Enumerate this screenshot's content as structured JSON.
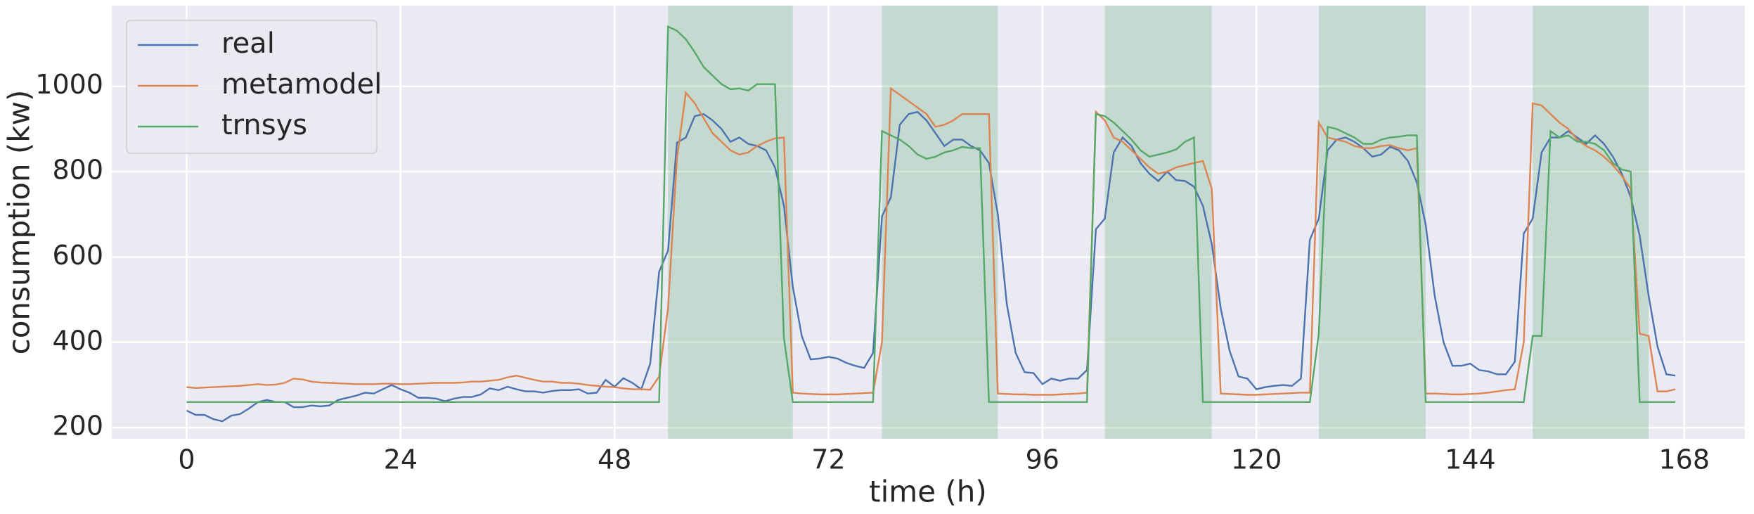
{
  "chart_data": {
    "type": "line",
    "xlabel": "time (h)",
    "ylabel": "consumption (kw)",
    "x": [
      0,
      1,
      2,
      3,
      4,
      5,
      6,
      7,
      8,
      9,
      10,
      11,
      12,
      13,
      14,
      15,
      16,
      17,
      18,
      19,
      20,
      21,
      22,
      23,
      24,
      25,
      26,
      27,
      28,
      29,
      30,
      31,
      32,
      33,
      34,
      35,
      36,
      37,
      38,
      39,
      40,
      41,
      42,
      43,
      44,
      45,
      46,
      47,
      48,
      49,
      50,
      51,
      52,
      53,
      54,
      55,
      56,
      57,
      58,
      59,
      60,
      61,
      62,
      63,
      64,
      65,
      66,
      67,
      68,
      69,
      70,
      71,
      72,
      73,
      74,
      75,
      76,
      77,
      78,
      79,
      80,
      81,
      82,
      83,
      84,
      85,
      86,
      87,
      88,
      89,
      90,
      91,
      92,
      93,
      94,
      95,
      96,
      97,
      98,
      99,
      100,
      101,
      102,
      103,
      104,
      105,
      106,
      107,
      108,
      109,
      110,
      111,
      112,
      113,
      114,
      115,
      116,
      117,
      118,
      119,
      120,
      121,
      122,
      123,
      124,
      125,
      126,
      127,
      128,
      129,
      130,
      131,
      132,
      133,
      134,
      135,
      136,
      137,
      138,
      139,
      140,
      141,
      142,
      143,
      144,
      145,
      146,
      147,
      148,
      149,
      150,
      151,
      152,
      153,
      154,
      155,
      156,
      157,
      158,
      159,
      160,
      161,
      162,
      163,
      164,
      165,
      166,
      167
    ],
    "series": [
      {
        "name": "real",
        "color": "#4c72b0",
        "values": [
          240,
          230,
          230,
          220,
          215,
          228,
          232,
          245,
          260,
          265,
          260,
          260,
          248,
          248,
          252,
          250,
          252,
          265,
          270,
          275,
          282,
          280,
          290,
          300,
          290,
          282,
          270,
          270,
          268,
          262,
          268,
          272,
          272,
          278,
          292,
          288,
          296,
          290,
          285,
          285,
          282,
          286,
          288,
          288,
          290,
          280,
          282,
          312,
          296,
          316,
          305,
          290,
          350,
          565,
          615,
          868,
          880,
          930,
          935,
          920,
          900,
          870,
          880,
          865,
          860,
          850,
          810,
          720,
          530,
          415,
          360,
          362,
          366,
          362,
          352,
          345,
          340,
          375,
          695,
          740,
          910,
          935,
          940,
          920,
          890,
          860,
          875,
          875,
          860,
          850,
          820,
          700,
          490,
          375,
          330,
          328,
          302,
          315,
          310,
          315,
          315,
          335,
          665,
          690,
          845,
          880,
          860,
          820,
          795,
          778,
          800,
          780,
          778,
          765,
          720,
          630,
          480,
          380,
          320,
          315,
          290,
          295,
          298,
          300,
          298,
          315,
          640,
          690,
          850,
          875,
          880,
          870,
          855,
          835,
          840,
          858,
          850,
          825,
          775,
          675,
          510,
          400,
          345,
          345,
          350,
          335,
          332,
          325,
          325,
          355,
          655,
          690,
          845,
          880,
          880,
          895,
          880,
          865,
          885,
          865,
          835,
          795,
          740,
          650,
          510,
          390,
          325,
          322
        ]
      },
      {
        "name": "metamodel",
        "color": "#dd8452",
        "values": [
          295,
          293,
          294,
          295,
          296,
          297,
          298,
          300,
          302,
          300,
          301,
          305,
          315,
          313,
          308,
          306,
          305,
          304,
          303,
          302,
          302,
          302,
          303,
          303,
          302,
          302,
          303,
          304,
          305,
          305,
          305,
          306,
          308,
          308,
          310,
          312,
          318,
          322,
          317,
          312,
          308,
          308,
          305,
          305,
          303,
          300,
          298,
          296,
          295,
          292,
          290,
          290,
          289,
          320,
          480,
          830,
          985,
          960,
          925,
          890,
          870,
          850,
          840,
          845,
          860,
          870,
          878,
          880,
          282,
          280,
          279,
          278,
          278,
          278,
          279,
          280,
          281,
          282,
          400,
          995,
          980,
          965,
          950,
          935,
          905,
          910,
          920,
          935,
          935,
          935,
          935,
          280,
          279,
          278,
          278,
          277,
          277,
          277,
          278,
          279,
          280,
          282,
          940,
          920,
          880,
          870,
          850,
          830,
          810,
          795,
          800,
          810,
          815,
          820,
          825,
          760,
          280,
          279,
          278,
          277,
          277,
          278,
          279,
          280,
          281,
          282,
          282,
          915,
          880,
          875,
          870,
          860,
          855,
          855,
          860,
          862,
          855,
          850,
          855,
          280,
          280,
          279,
          278,
          278,
          279,
          280,
          282,
          285,
          288,
          290,
          400,
          960,
          955,
          935,
          915,
          900,
          875,
          860,
          850,
          835,
          815,
          790,
          760,
          420,
          415,
          285,
          285,
          290
        ]
      },
      {
        "name": "trnsys",
        "color": "#55a868",
        "values": [
          260,
          260,
          260,
          260,
          260,
          260,
          260,
          260,
          260,
          260,
          260,
          260,
          260,
          260,
          260,
          260,
          260,
          260,
          260,
          260,
          260,
          260,
          260,
          260,
          260,
          260,
          260,
          260,
          260,
          260,
          260,
          260,
          260,
          260,
          260,
          260,
          260,
          260,
          260,
          260,
          260,
          260,
          260,
          260,
          260,
          260,
          260,
          260,
          260,
          260,
          260,
          260,
          260,
          260,
          1140,
          1130,
          1110,
          1080,
          1045,
          1025,
          1005,
          993,
          995,
          990,
          1005,
          1005,
          1005,
          410,
          260,
          260,
          260,
          260,
          260,
          260,
          260,
          260,
          260,
          260,
          895,
          885,
          875,
          860,
          840,
          830,
          835,
          845,
          850,
          858,
          855,
          855,
          260,
          260,
          260,
          260,
          260,
          260,
          260,
          260,
          260,
          260,
          260,
          260,
          935,
          930,
          915,
          895,
          875,
          850,
          835,
          840,
          845,
          852,
          870,
          880,
          260,
          260,
          260,
          260,
          260,
          260,
          260,
          260,
          260,
          260,
          260,
          260,
          260,
          420,
          905,
          900,
          890,
          880,
          865,
          865,
          875,
          880,
          882,
          885,
          885,
          260,
          260,
          260,
          260,
          260,
          260,
          260,
          260,
          260,
          260,
          260,
          260,
          415,
          415,
          895,
          880,
          885,
          870,
          870,
          865,
          850,
          820,
          805,
          800,
          260,
          260,
          260,
          260,
          260
        ]
      }
    ],
    "shaded_regions": [
      [
        54,
        68
      ],
      [
        78,
        91
      ],
      [
        103,
        115
      ],
      [
        127,
        139
      ],
      [
        151,
        164
      ]
    ],
    "shade_color": "#55a868",
    "xlim": [
      -8.4,
      174.8
    ],
    "ylim": [
      174,
      1189
    ],
    "xticks": [
      0,
      24,
      48,
      72,
      96,
      120,
      144,
      168
    ],
    "yticks": [
      200,
      400,
      600,
      800,
      1000
    ],
    "grid": true,
    "legend": "upper left"
  }
}
